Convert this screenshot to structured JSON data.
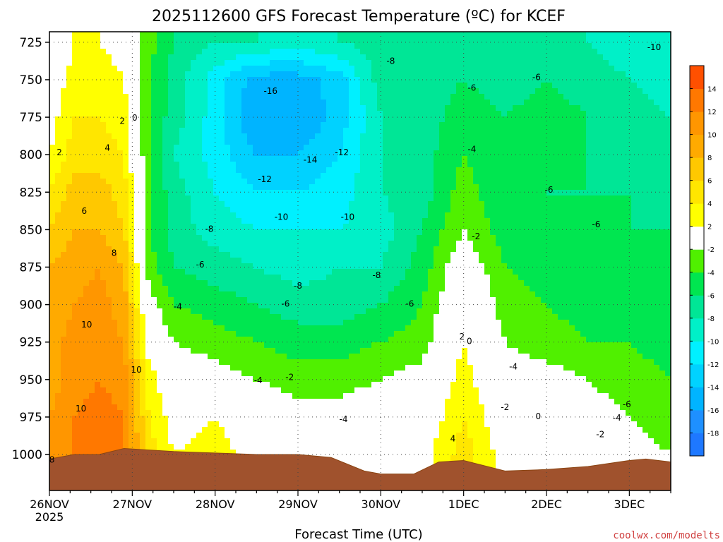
{
  "chart_data": {
    "type": "heatmap",
    "title": "2025112600 GFS Forecast Temperature (ºC) for KCEF",
    "xlabel": "Forecast Time (UTC)",
    "ylabel": "",
    "y_axis_unit": "hPa",
    "y_inverted": true,
    "ylim": [
      1024,
      718
    ],
    "xlim": [
      0,
      7.5
    ],
    "x_ticks": [
      {
        "value": 0,
        "label": "26NOV"
      },
      {
        "value": 1,
        "label": "27NOV"
      },
      {
        "value": 2,
        "label": "28NOV"
      },
      {
        "value": 3,
        "label": "29NOV"
      },
      {
        "value": 4,
        "label": "30NOV"
      },
      {
        "value": 5,
        "label": "1DEC"
      },
      {
        "value": 6,
        "label": "2DEC"
      },
      {
        "value": 7,
        "label": "3DEC"
      }
    ],
    "x_year_label": "2025",
    "y_ticks": [
      725,
      750,
      775,
      800,
      825,
      850,
      875,
      900,
      925,
      950,
      975,
      1000
    ],
    "grid": true,
    "colorbar": {
      "min": -20,
      "max": 16,
      "bins": [
        {
          "from": -20,
          "to": -18,
          "color": "#1e78ff"
        },
        {
          "from": -18,
          "to": -16,
          "color": "#1e90ff"
        },
        {
          "from": -16,
          "to": -14,
          "color": "#00b4ff"
        },
        {
          "from": -14,
          "to": -12,
          "color": "#00d2ff"
        },
        {
          "from": -12,
          "to": -10,
          "color": "#00f0ff"
        },
        {
          "from": -10,
          "to": -8,
          "color": "#00f0c8"
        },
        {
          "from": -8,
          "to": -6,
          "color": "#00e696"
        },
        {
          "from": -6,
          "to": -4,
          "color": "#00e650"
        },
        {
          "from": -4,
          "to": -2,
          "color": "#50f000"
        },
        {
          "from": -2,
          "to": 2,
          "color": "#ffffff"
        },
        {
          "from": 2,
          "to": 4,
          "color": "#ffff00"
        },
        {
          "from": 4,
          "to": 6,
          "color": "#ffe600"
        },
        {
          "from": 6,
          "to": 8,
          "color": "#ffc800"
        },
        {
          "from": 8,
          "to": 10,
          "color": "#ffaa00"
        },
        {
          "from": 10,
          "to": 12,
          "color": "#ff9600"
        },
        {
          "from": 12,
          "to": 14,
          "color": "#ff7800"
        },
        {
          "from": 14,
          "to": 16,
          "color": "#ff5000"
        }
      ],
      "tick_labels": [
        14,
        12,
        10,
        8,
        6,
        4,
        2,
        -2,
        -4,
        -6,
        -8,
        -10,
        -12,
        -14,
        -16,
        -18
      ]
    },
    "surface_pressure_hPa": [
      [
        0.0,
        1003
      ],
      [
        0.3,
        1000
      ],
      [
        0.6,
        1000
      ],
      [
        0.9,
        996
      ],
      [
        1.2,
        997
      ],
      [
        1.5,
        998
      ],
      [
        2.0,
        999
      ],
      [
        2.5,
        1000
      ],
      [
        3.0,
        1000
      ],
      [
        3.4,
        1002
      ],
      [
        3.8,
        1011
      ],
      [
        4.0,
        1013
      ],
      [
        4.4,
        1013
      ],
      [
        4.7,
        1005
      ],
      [
        5.0,
        1004
      ],
      [
        5.5,
        1011
      ],
      [
        6.0,
        1010
      ],
      [
        6.5,
        1008
      ],
      [
        7.0,
        1004
      ],
      [
        7.2,
        1003
      ],
      [
        7.5,
        1005
      ]
    ],
    "temperature_grid": {
      "times": [
        0.0,
        0.3,
        0.6,
        0.9,
        1.2,
        1.5,
        2.0,
        2.5,
        3.0,
        3.5,
        4.0,
        4.5,
        5.0,
        5.5,
        6.0,
        6.5,
        7.0,
        7.5
      ],
      "levels_hPa": [
        725,
        750,
        775,
        800,
        825,
        850,
        875,
        900,
        925,
        950,
        975,
        1000
      ],
      "celsius": [
        [
          -2,
          2,
          2,
          1,
          -3,
          -6,
          -8,
          -8,
          -9,
          -8,
          -7,
          -8,
          -7,
          -8,
          -7,
          -8,
          -9,
          -10
        ],
        [
          0,
          3,
          3,
          2,
          -4,
          -7,
          -11,
          -15,
          -15,
          -13,
          -7,
          -7,
          -6,
          -7,
          -6,
          -7,
          -8,
          -9
        ],
        [
          1,
          4,
          4,
          3,
          -4,
          -7,
          -11,
          -16,
          -16,
          -13,
          -8,
          -7,
          -5,
          -6,
          -5,
          -6,
          -7,
          -8
        ],
        [
          2,
          5,
          5,
          4,
          -4,
          -8,
          -11,
          -14,
          -14,
          -12,
          -8,
          -7,
          -4,
          -6,
          -5,
          -6,
          -7,
          -8
        ],
        [
          4,
          7,
          7,
          5,
          -4,
          -7,
          -10,
          -12,
          -12,
          -11,
          -8,
          -7,
          -3,
          -6,
          -6,
          -6,
          -6,
          -7
        ],
        [
          6,
          8,
          8,
          6,
          -4,
          -7,
          -9,
          -10,
          -10,
          -10,
          -9,
          -6,
          -2,
          -5,
          -6,
          -6,
          -6,
          -6
        ],
        [
          8,
          9,
          10,
          8,
          -3,
          -6,
          -7,
          -8,
          -9,
          -8,
          -8,
          -5,
          0,
          -4,
          -5,
          -6,
          -6,
          -6
        ],
        [
          8,
          10,
          11,
          9,
          -1,
          -4,
          -5,
          -6,
          -7,
          -7,
          -6,
          -4,
          1,
          -3,
          -4,
          -5,
          -5,
          -5
        ],
        [
          9,
          11,
          11,
          10,
          1,
          -2,
          -3,
          -4,
          -5,
          -5,
          -4,
          -3,
          2,
          -2,
          -3,
          -4,
          -4,
          -5
        ],
        [
          9,
          11,
          12,
          11,
          3,
          0,
          -1,
          -2,
          -3,
          -3,
          -2,
          -1,
          3,
          -1,
          -1,
          -2,
          -3,
          -4
        ],
        [
          10,
          12,
          13,
          12,
          4,
          1,
          2,
          0,
          -1,
          -1,
          0,
          0,
          4,
          0,
          0,
          -1,
          -2,
          -3
        ],
        [
          10,
          12,
          13,
          12,
          5,
          2,
          3,
          1,
          1,
          0,
          1,
          1,
          5,
          1,
          2,
          1,
          -1,
          -2
        ]
      ]
    },
    "contour_labels": [
      {
        "text": "-10",
        "x": 7.3,
        "p": 728
      },
      {
        "text": "-8",
        "x": 4.12,
        "p": 737
      },
      {
        "text": "-6",
        "x": 5.1,
        "p": 755
      },
      {
        "text": "-6",
        "x": 5.88,
        "p": 748
      },
      {
        "text": "-16",
        "x": 2.67,
        "p": 757
      },
      {
        "text": "-4",
        "x": 5.1,
        "p": 796
      },
      {
        "text": "-12",
        "x": 3.53,
        "p": 798
      },
      {
        "text": "-14",
        "x": 3.15,
        "p": 803
      },
      {
        "text": "-12",
        "x": 2.6,
        "p": 816
      },
      {
        "text": "-6",
        "x": 6.03,
        "p": 823
      },
      {
        "text": "-10",
        "x": 2.8,
        "p": 841
      },
      {
        "text": "-10",
        "x": 3.6,
        "p": 841
      },
      {
        "text": "-6",
        "x": 6.6,
        "p": 846
      },
      {
        "text": "-8",
        "x": 1.93,
        "p": 849
      },
      {
        "text": "-2",
        "x": 5.15,
        "p": 854
      },
      {
        "text": "-6",
        "x": 1.82,
        "p": 873
      },
      {
        "text": "-8",
        "x": 3.95,
        "p": 880
      },
      {
        "text": "-8",
        "x": 3.0,
        "p": 887
      },
      {
        "text": "-6",
        "x": 2.85,
        "p": 899
      },
      {
        "text": "-6",
        "x": 4.35,
        "p": 899
      },
      {
        "text": "-4",
        "x": 1.55,
        "p": 901
      },
      {
        "text": "-4",
        "x": 5.6,
        "p": 941
      },
      {
        "text": "-6",
        "x": 6.97,
        "p": 966
      },
      {
        "text": "-4",
        "x": 2.52,
        "p": 950
      },
      {
        "text": "-2",
        "x": 2.9,
        "p": 948
      },
      {
        "text": "-2",
        "x": 5.5,
        "p": 968
      },
      {
        "text": "0",
        "x": 5.07,
        "p": 924
      },
      {
        "text": "2",
        "x": 4.98,
        "p": 921
      },
      {
        "text": "0",
        "x": 5.9,
        "p": 974
      },
      {
        "text": "-4",
        "x": 3.55,
        "p": 976
      },
      {
        "text": "-4",
        "x": 6.85,
        "p": 975
      },
      {
        "text": "-2",
        "x": 6.65,
        "p": 986
      },
      {
        "text": "4",
        "x": 4.87,
        "p": 989
      },
      {
        "text": "2",
        "x": 0.12,
        "p": 798
      },
      {
        "text": "2",
        "x": 0.88,
        "p": 777
      },
      {
        "text": "0",
        "x": 1.03,
        "p": 775
      },
      {
        "text": "4",
        "x": 0.7,
        "p": 795
      },
      {
        "text": "6",
        "x": 0.42,
        "p": 837
      },
      {
        "text": "8",
        "x": 0.78,
        "p": 865
      },
      {
        "text": "10",
        "x": 0.45,
        "p": 913
      },
      {
        "text": "10",
        "x": 1.05,
        "p": 943
      },
      {
        "text": "10",
        "x": 0.38,
        "p": 969
      },
      {
        "text": "8",
        "x": 0.03,
        "p": 1003
      }
    ]
  },
  "footer": {
    "credit": "coolwx.com/modelts"
  }
}
